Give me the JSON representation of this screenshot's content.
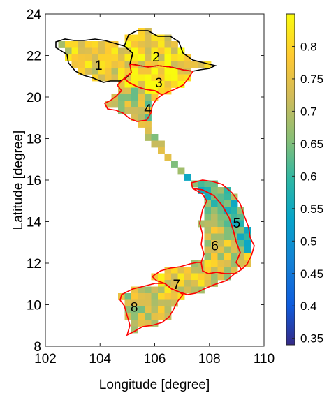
{
  "chart_data": {
    "type": "heatmap",
    "title": "",
    "xlabel": "Longitude [degree]",
    "ylabel": "Latitude [degree]",
    "xlim": [
      102,
      110
    ],
    "ylim": [
      8,
      24
    ],
    "xticks": [
      "102",
      "104",
      "106",
      "108",
      "110"
    ],
    "yticks": [
      "8",
      "10",
      "12",
      "14",
      "16",
      "18",
      "20",
      "22",
      "24"
    ],
    "colorbar": {
      "colormap": "parula",
      "range": [
        0.34,
        0.85
      ],
      "ticks": [
        "0.35",
        "0.4",
        "0.45",
        "0.5",
        "0.55",
        "0.6",
        "0.65",
        "0.7",
        "0.75",
        "0.8"
      ]
    },
    "regions": [
      {
        "label": "1",
        "lon": 103.95,
        "lat": 21.55,
        "mean_value": 0.76,
        "border": "#000000"
      },
      {
        "label": "2",
        "lon": 106.05,
        "lat": 21.95,
        "mean_value": 0.79,
        "border": "#000000"
      },
      {
        "label": "3",
        "lon": 106.15,
        "lat": 20.7,
        "mean_value": 0.8,
        "border": "#ff0000"
      },
      {
        "label": "4",
        "lon": 105.75,
        "lat": 19.45,
        "mean_value": 0.7,
        "border": "#ff0000"
      },
      {
        "label": "5",
        "lon": 109.0,
        "lat": 13.95,
        "mean_value": 0.62,
        "border": "#ff0000"
      },
      {
        "label": "6",
        "lon": 108.2,
        "lat": 12.85,
        "mean_value": 0.73,
        "border": "#ff0000"
      },
      {
        "label": "7",
        "lon": 106.8,
        "lat": 11.0,
        "mean_value": 0.76,
        "border": "#ff0000"
      },
      {
        "label": "8",
        "lon": 105.25,
        "lat": 9.9,
        "mean_value": 0.72,
        "border": "#ff0000"
      }
    ]
  }
}
